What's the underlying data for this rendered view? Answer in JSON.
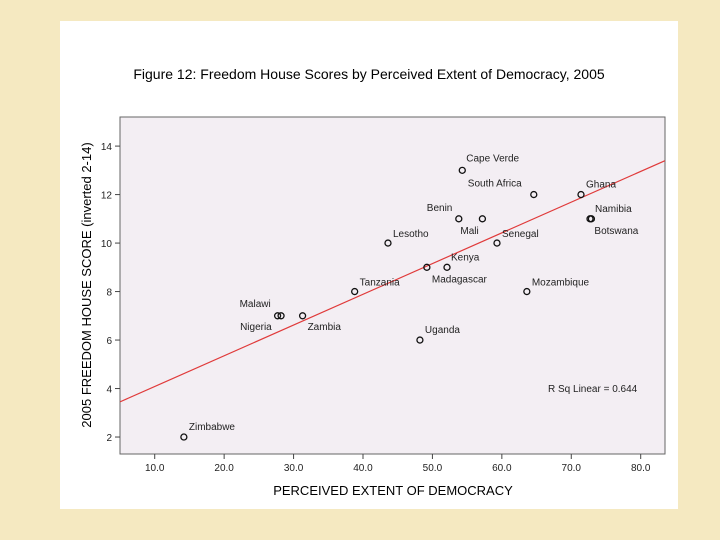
{
  "chart_data": {
    "type": "scatter",
    "title": "Figure 12: Freedom House Scores by Perceived Extent of Democracy, 2005",
    "xlabel": "PERCEIVED EXTENT OF DEMOCRACY",
    "ylabel": "2005 FREEDOM HOUSE SCORE (inverted 2-14)",
    "xlim": [
      5,
      83.5
    ],
    "ylim": [
      1.3,
      15.2
    ],
    "xticks": [
      10,
      20,
      30,
      40,
      50,
      60,
      70,
      80
    ],
    "xtick_labels": [
      "10.0",
      "20.0",
      "30.0",
      "40.0",
      "50.0",
      "60.0",
      "70.0",
      "80.0"
    ],
    "yticks": [
      2,
      4,
      6,
      8,
      10,
      12,
      14
    ],
    "ytick_labels": [
      "2",
      "4",
      "6",
      "8",
      "10",
      "12",
      "14"
    ],
    "points": [
      {
        "label": "Cape Verde",
        "x": 54.3,
        "y": 13
      },
      {
        "label": "South Africa",
        "x": 64.6,
        "y": 12
      },
      {
        "label": "Ghana",
        "x": 71.4,
        "y": 12
      },
      {
        "label": "Benin",
        "x": 53.8,
        "y": 11
      },
      {
        "label": "Mali",
        "x": 57.2,
        "y": 11
      },
      {
        "label": "Namibia",
        "x": 72.7,
        "y": 11
      },
      {
        "label": "Botswana",
        "x": 72.9,
        "y": 11
      },
      {
        "label": "Senegal",
        "x": 59.3,
        "y": 10
      },
      {
        "label": "Lesotho",
        "x": 43.6,
        "y": 10
      },
      {
        "label": "Kenya",
        "x": 52.1,
        "y": 9
      },
      {
        "label": "Madagascar",
        "x": 49.2,
        "y": 9
      },
      {
        "label": "Tanzania",
        "x": 38.8,
        "y": 8
      },
      {
        "label": "Mozambique",
        "x": 63.6,
        "y": 8
      },
      {
        "label": "Malawi",
        "x": 27.7,
        "y": 7
      },
      {
        "label": "Nigeria",
        "x": 28.2,
        "y": 7
      },
      {
        "label": "Zambia",
        "x": 31.3,
        "y": 7
      },
      {
        "label": "Uganda",
        "x": 48.2,
        "y": 6
      },
      {
        "label": "Zimbabwe",
        "x": 14.2,
        "y": 2
      }
    ],
    "fit_line": {
      "x": [
        5,
        83.5
      ],
      "y": [
        3.45,
        13.4
      ]
    },
    "r_squared_label": "R Sq Linear = 0.644",
    "colors": {
      "plot_bg": "#f3eef3",
      "fit_line": "#e03a3a",
      "marker": "#111111",
      "page_bg": "#f5e9c1"
    }
  }
}
